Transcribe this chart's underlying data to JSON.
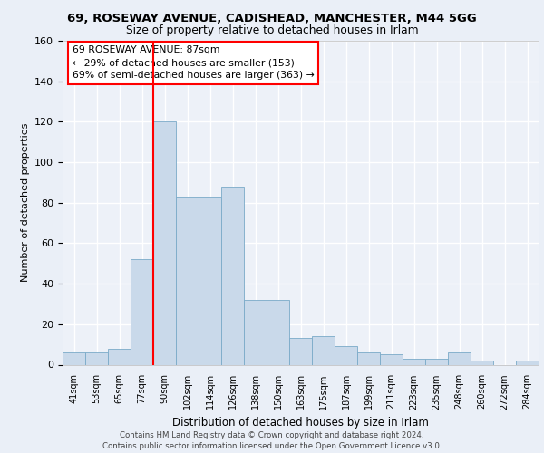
{
  "title1": "69, ROSEWAY AVENUE, CADISHEAD, MANCHESTER, M44 5GG",
  "title2": "Size of property relative to detached houses in Irlam",
  "xlabel": "Distribution of detached houses by size in Irlam",
  "ylabel": "Number of detached properties",
  "bar_labels": [
    "41sqm",
    "53sqm",
    "65sqm",
    "77sqm",
    "90sqm",
    "102sqm",
    "114sqm",
    "126sqm",
    "138sqm",
    "150sqm",
    "163sqm",
    "175sqm",
    "187sqm",
    "199sqm",
    "211sqm",
    "223sqm",
    "235sqm",
    "248sqm",
    "260sqm",
    "272sqm",
    "284sqm"
  ],
  "bar_values": [
    6,
    6,
    8,
    52,
    120,
    83,
    83,
    88,
    32,
    32,
    13,
    14,
    9,
    6,
    5,
    3,
    3,
    6,
    2,
    0,
    2
  ],
  "bar_color": "#c9d9ea",
  "bar_edge_color": "#7aaac8",
  "vline_color": "red",
  "vline_x": 3.5,
  "annotation_text": "69 ROSEWAY AVENUE: 87sqm\n← 29% of detached houses are smaller (153)\n69% of semi-detached houses are larger (363) →",
  "annotation_box_color": "white",
  "annotation_box_edge": "red",
  "footnote1": "Contains HM Land Registry data © Crown copyright and database right 2024.",
  "footnote2": "Contains public sector information licensed under the Open Government Licence v3.0.",
  "bg_color": "#eaeff7",
  "plot_bg_color": "#edf1f8",
  "grid_color": "white",
  "ylim": [
    0,
    160
  ],
  "yticks": [
    0,
    20,
    40,
    60,
    80,
    100,
    120,
    140,
    160
  ]
}
